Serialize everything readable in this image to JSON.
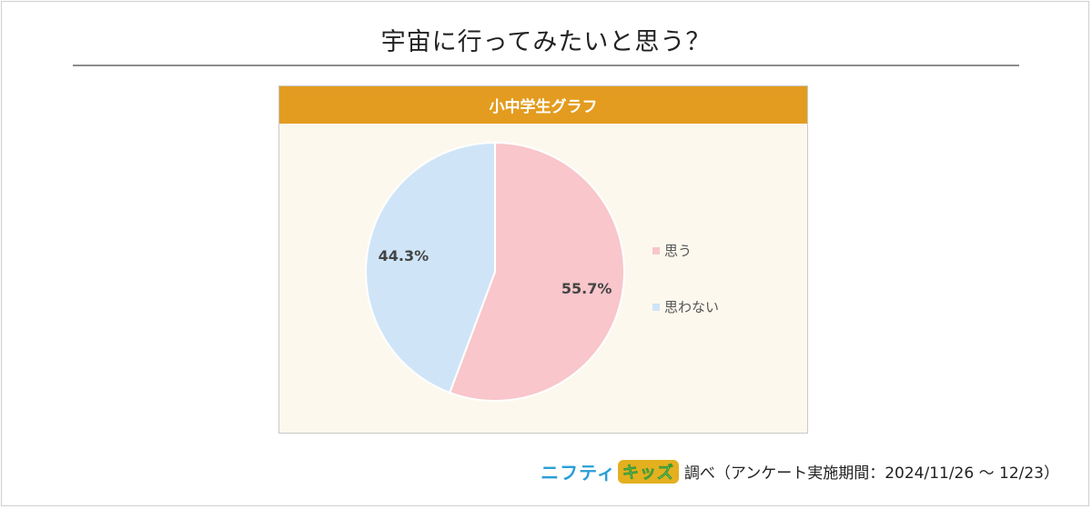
{
  "page": {
    "title": "宇宙に行ってみたいと思う？",
    "footer": {
      "brand_part1": "ニフティ",
      "brand_part2": "キッズ",
      "text": "調べ（アンケート実施期間：2024/11/26 ～ 12/23）"
    }
  },
  "chart_data": {
    "type": "pie",
    "title": "小中学生グラフ",
    "categories": [
      "思う",
      "思わない"
    ],
    "values": [
      55.7,
      44.3
    ],
    "labels": [
      "55.7%",
      "44.3%"
    ],
    "colors": [
      "#f8c6cb",
      "#cfe5f7"
    ],
    "start_angle": "12 o'clock",
    "direction": "clockwise",
    "legend_position": "right"
  }
}
